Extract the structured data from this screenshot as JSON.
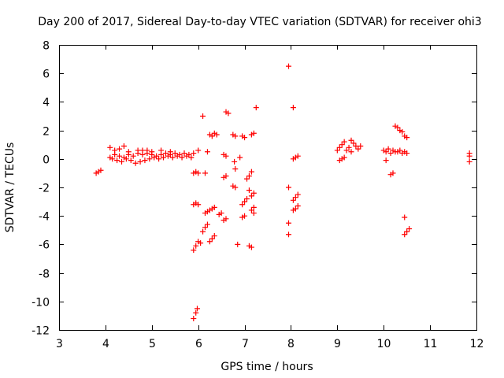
{
  "chart_data": {
    "type": "scatter",
    "title": "Day 200 of 2017, Sidereal Day-to-day VTEC variation (SDTVAR) for receiver ohi3",
    "xlabel": "GPS time / hours",
    "ylabel": "SDTVAR / TECUs",
    "xlim": [
      3,
      12
    ],
    "ylim": [
      -12,
      8
    ],
    "xticks": [
      3,
      4,
      5,
      6,
      7,
      8,
      9,
      10,
      11,
      12
    ],
    "yticks": [
      -12,
      -10,
      -8,
      -6,
      -4,
      -2,
      0,
      2,
      4,
      6,
      8
    ],
    "grid": false,
    "legend": "none",
    "marker": "+",
    "color": "#ff0000",
    "points": [
      [
        3.8,
        -1.0
      ],
      [
        3.85,
        -0.9
      ],
      [
        3.9,
        -0.8
      ],
      [
        4.1,
        0.8
      ],
      [
        4.2,
        0.6
      ],
      [
        4.3,
        0.7
      ],
      [
        4.4,
        0.9
      ],
      [
        4.5,
        0.5
      ],
      [
        4.1,
        0.1
      ],
      [
        4.2,
        0.3
      ],
      [
        4.3,
        0.2
      ],
      [
        4.4,
        0.1
      ],
      [
        4.5,
        0.3
      ],
      [
        4.6,
        0.2
      ],
      [
        4.7,
        0.4
      ],
      [
        4.8,
        0.3
      ],
      [
        4.9,
        0.4
      ],
      [
        5.0,
        0.3
      ],
      [
        5.1,
        0.2
      ],
      [
        5.2,
        0.3
      ],
      [
        5.3,
        0.4
      ],
      [
        5.4,
        0.3
      ],
      [
        5.5,
        0.4
      ],
      [
        5.6,
        0.3
      ],
      [
        5.7,
        0.4
      ],
      [
        5.8,
        0.3
      ],
      [
        4.15,
        0.0
      ],
      [
        4.25,
        -0.1
      ],
      [
        4.35,
        -0.2
      ],
      [
        4.45,
        0.0
      ],
      [
        4.55,
        -0.1
      ],
      [
        4.65,
        -0.3
      ],
      [
        4.75,
        -0.2
      ],
      [
        4.85,
        -0.1
      ],
      [
        4.95,
        0.0
      ],
      [
        5.05,
        0.1
      ],
      [
        5.15,
        0.0
      ],
      [
        5.25,
        0.1
      ],
      [
        5.35,
        0.2
      ],
      [
        5.45,
        0.1
      ],
      [
        5.55,
        0.2
      ],
      [
        5.65,
        0.1
      ],
      [
        5.75,
        0.2
      ],
      [
        5.85,
        0.1
      ],
      [
        5.9,
        0.4
      ],
      [
        4.7,
        0.6
      ],
      [
        4.8,
        0.6
      ],
      [
        4.9,
        0.6
      ],
      [
        5.0,
        0.5
      ],
      [
        5.2,
        0.6
      ],
      [
        5.4,
        0.5
      ],
      [
        5.9,
        -1.0
      ],
      [
        5.95,
        -0.9
      ],
      [
        6.0,
        -1.0
      ],
      [
        6.15,
        -1.0
      ],
      [
        5.9,
        -3.2
      ],
      [
        5.95,
        -3.1
      ],
      [
        6.0,
        -3.2
      ],
      [
        6.1,
        3.0
      ],
      [
        5.9,
        -6.4
      ],
      [
        5.95,
        -6.1
      ],
      [
        6.0,
        -5.8
      ],
      [
        6.05,
        -5.9
      ],
      [
        6.1,
        -5.1
      ],
      [
        6.15,
        -4.8
      ],
      [
        6.2,
        -4.6
      ],
      [
        6.15,
        -3.8
      ],
      [
        6.2,
        -3.7
      ],
      [
        6.25,
        -3.6
      ],
      [
        6.3,
        -3.5
      ],
      [
        6.35,
        -3.4
      ],
      [
        6.25,
        -5.8
      ],
      [
        6.3,
        -5.6
      ],
      [
        6.35,
        -5.4
      ],
      [
        5.9,
        -11.2
      ],
      [
        5.95,
        -10.8
      ],
      [
        5.98,
        -10.5
      ],
      [
        6.25,
        1.7
      ],
      [
        6.3,
        1.6
      ],
      [
        6.35,
        1.8
      ],
      [
        6.4,
        1.7
      ],
      [
        6.2,
        0.5
      ],
      [
        6.0,
        0.6
      ],
      [
        6.45,
        -3.9
      ],
      [
        6.5,
        -3.8
      ],
      [
        6.6,
        3.3
      ],
      [
        6.65,
        3.2
      ],
      [
        6.55,
        0.3
      ],
      [
        6.6,
        0.2
      ],
      [
        6.55,
        -1.3
      ],
      [
        6.6,
        -1.2
      ],
      [
        6.55,
        -4.3
      ],
      [
        6.6,
        -4.2
      ],
      [
        6.75,
        1.7
      ],
      [
        6.8,
        1.6
      ],
      [
        6.78,
        -0.2
      ],
      [
        6.8,
        -0.7
      ],
      [
        6.75,
        -1.9
      ],
      [
        6.8,
        -2.0
      ],
      [
        6.85,
        -6.0
      ],
      [
        6.9,
        0.1
      ],
      [
        6.95,
        1.6
      ],
      [
        7.0,
        1.5
      ],
      [
        6.95,
        -3.2
      ],
      [
        7.0,
        -3.0
      ],
      [
        7.05,
        -2.8
      ],
      [
        6.95,
        -4.1
      ],
      [
        7.0,
        -4.0
      ],
      [
        7.05,
        -1.4
      ],
      [
        7.1,
        -1.2
      ],
      [
        7.1,
        -2.2
      ],
      [
        7.15,
        -6.2
      ],
      [
        7.1,
        -6.1
      ],
      [
        7.15,
        1.7
      ],
      [
        7.2,
        1.8
      ],
      [
        7.25,
        3.6
      ],
      [
        7.15,
        -0.9
      ],
      [
        7.2,
        -2.4
      ],
      [
        7.15,
        -2.6
      ],
      [
        7.15,
        -3.6
      ],
      [
        7.2,
        -3.4
      ],
      [
        7.2,
        -3.8
      ],
      [
        7.95,
        6.5
      ],
      [
        8.05,
        3.6
      ],
      [
        7.95,
        -2.0
      ],
      [
        7.95,
        -4.5
      ],
      [
        7.95,
        -5.3
      ],
      [
        8.05,
        0.0
      ],
      [
        8.1,
        0.1
      ],
      [
        8.15,
        0.2
      ],
      [
        8.05,
        -2.9
      ],
      [
        8.1,
        -2.7
      ],
      [
        8.15,
        -2.5
      ],
      [
        8.05,
        -3.6
      ],
      [
        8.1,
        -3.5
      ],
      [
        8.15,
        -3.3
      ],
      [
        9.0,
        0.6
      ],
      [
        9.05,
        0.8
      ],
      [
        9.1,
        1.0
      ],
      [
        9.15,
        1.2
      ],
      [
        9.05,
        -0.1
      ],
      [
        9.1,
        0.0
      ],
      [
        9.15,
        0.1
      ],
      [
        9.2,
        0.6
      ],
      [
        9.25,
        0.8
      ],
      [
        9.3,
        1.3
      ],
      [
        9.35,
        1.1
      ],
      [
        9.4,
        0.9
      ],
      [
        9.45,
        0.7
      ],
      [
        9.5,
        0.9
      ],
      [
        9.3,
        0.5
      ],
      [
        10.0,
        0.6
      ],
      [
        10.05,
        0.5
      ],
      [
        10.1,
        0.7
      ],
      [
        10.15,
        0.4
      ],
      [
        10.2,
        0.6
      ],
      [
        10.25,
        0.5
      ],
      [
        10.3,
        0.5
      ],
      [
        10.35,
        0.6
      ],
      [
        10.4,
        0.4
      ],
      [
        10.45,
        0.5
      ],
      [
        10.5,
        0.4
      ],
      [
        10.05,
        -0.1
      ],
      [
        10.15,
        -1.1
      ],
      [
        10.2,
        -1.0
      ],
      [
        10.25,
        2.3
      ],
      [
        10.3,
        2.2
      ],
      [
        10.35,
        2.0
      ],
      [
        10.4,
        1.9
      ],
      [
        10.45,
        1.6
      ],
      [
        10.5,
        1.5
      ],
      [
        10.45,
        -4.1
      ],
      [
        10.45,
        -5.3
      ],
      [
        10.5,
        -5.1
      ],
      [
        10.55,
        -4.9
      ],
      [
        11.85,
        0.4
      ],
      [
        11.85,
        0.2
      ],
      [
        11.85,
        -0.2
      ]
    ]
  }
}
